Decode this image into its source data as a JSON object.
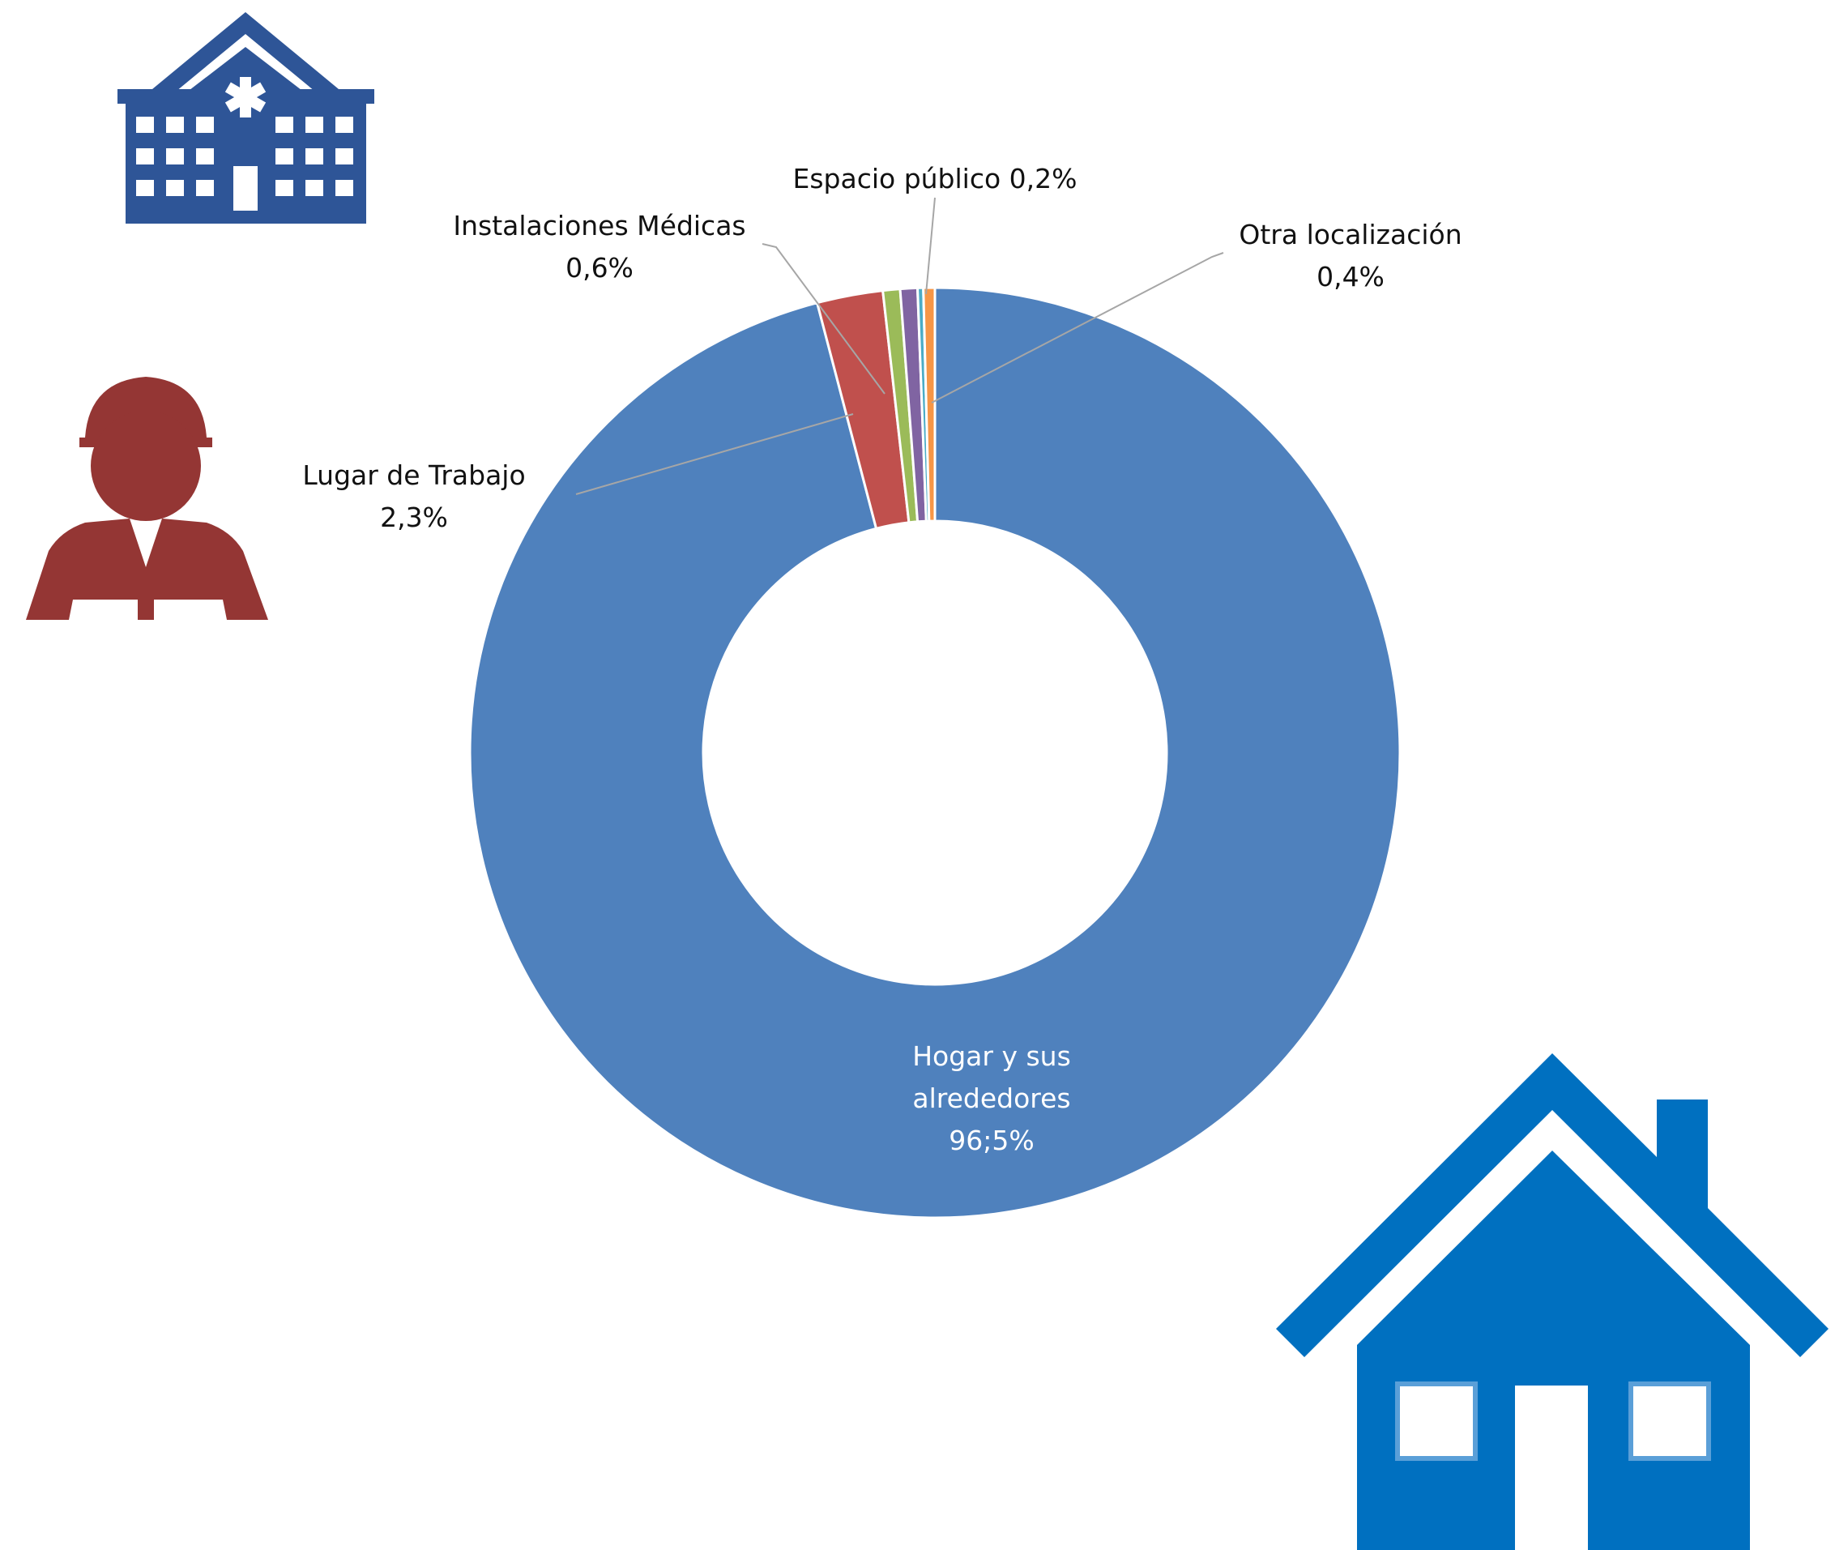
{
  "chart_data": {
    "type": "donut",
    "categories": [
      "Hogar y sus alrededores",
      "Lugar de Trabajo",
      "Instalaciones Médicas",
      null,
      "Espacio público",
      "Otra localización"
    ],
    "values": [
      96.5,
      2.3,
      0.6,
      0.6,
      0.2,
      0.4
    ],
    "value_labels": [
      "96;5%",
      "2,3%",
      "0,6%",
      null,
      "0,2%",
      "0,4%"
    ],
    "colors": [
      "#4f81bd",
      "#c0504d",
      "#9bbb59",
      "#8064a2",
      "#4bacc6",
      "#f79646"
    ]
  }
}
